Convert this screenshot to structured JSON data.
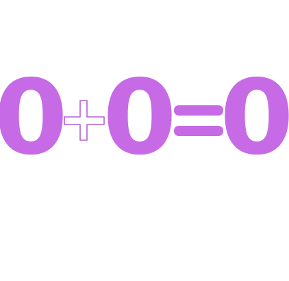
{
  "equation": {
    "first_operand": "0",
    "operator": "+",
    "second_operand": "0",
    "equals": "=",
    "result": "0"
  },
  "colors": {
    "glyph_fill": "#c66ae6",
    "plus_stroke": "#b55fd6",
    "plus_fill": "#ffffff",
    "background": "#ffffff"
  },
  "icons": {
    "operator": "plus-icon",
    "equals": "equals-icon"
  }
}
